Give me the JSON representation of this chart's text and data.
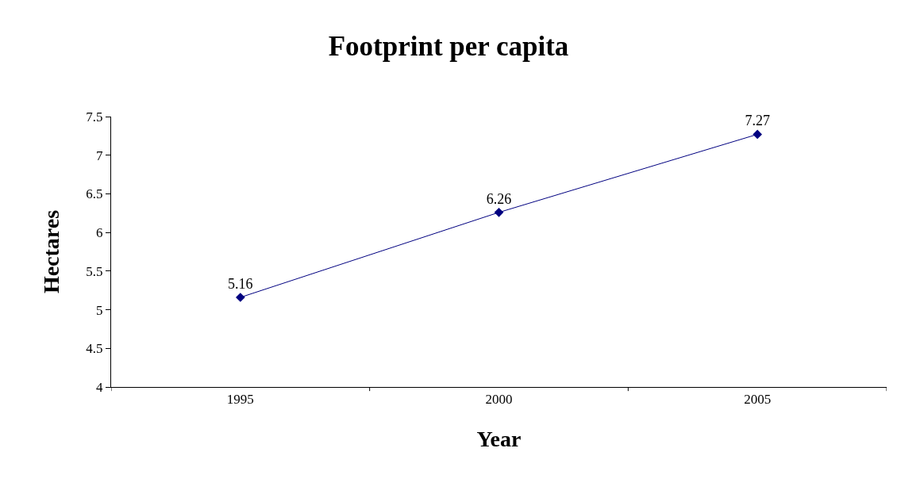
{
  "chart_data": {
    "type": "line",
    "title": "Footprint per capita",
    "xlabel": "Year",
    "ylabel": "Hectares",
    "categories": [
      "1995",
      "2000",
      "2005"
    ],
    "series": [
      {
        "color": "#000080",
        "values": [
          5.16,
          6.26,
          7.27
        ]
      }
    ],
    "ylim": [
      4,
      7.5
    ],
    "yticks": [
      4,
      4.5,
      5,
      5.5,
      6,
      6.5,
      7,
      7.5
    ],
    "data_labels": true,
    "marker": "diamond",
    "line_style": "solid",
    "legend": false
  }
}
